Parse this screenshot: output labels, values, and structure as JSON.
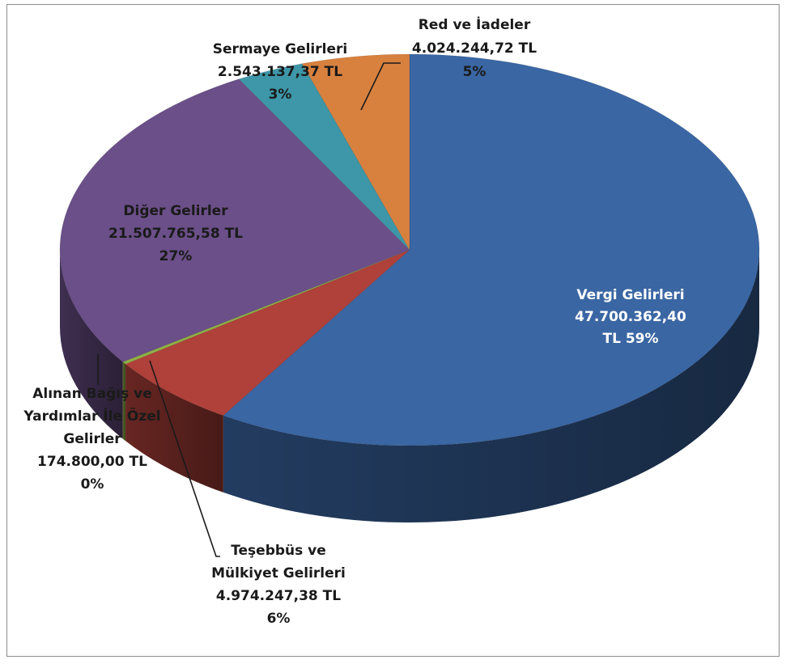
{
  "chart_data": {
    "type": "pie",
    "title": "",
    "style": "3d",
    "currency": "TL",
    "slices": [
      {
        "name": "Vergi Gelirleri",
        "value": 47700362.4,
        "value_label": "47.700.362,40",
        "pct_label": "TL 59%",
        "color": "#3a66a3"
      },
      {
        "name": "Teşebbüs ve Mülkiyet Gelirleri",
        "name_lines": [
          "Teşebbüs ve",
          "Mülkiyet Gelirleri"
        ],
        "value": 4974247.38,
        "value_label": "4.974.247,38 TL",
        "pct_label": "6%",
        "color": "#b0403a"
      },
      {
        "name": "Alınan Bağış ve Yardımlar İle Özel Gelirler",
        "name_lines": [
          "Alınan Bağış ve",
          "Yardımlar İle Özel",
          "Gelirler"
        ],
        "value": 174800.0,
        "value_label": "174.800,00 TL",
        "pct_label": "0%",
        "color": "#8fb043"
      },
      {
        "name": "Diğer Gelirler",
        "value": 21507765.58,
        "value_label": "21.507.765,58 TL",
        "pct_label": "27%",
        "color": "#6b4f88"
      },
      {
        "name": "Sermaye Gelirleri",
        "value": 2543137.37,
        "value_label": "2.543.137,37 TL",
        "pct_label": "3%",
        "color": "#3e97a8"
      },
      {
        "name": "Red ve İadeler",
        "value": 4024244.72,
        "value_label": "4.024.244,72 TL",
        "pct_label": "5%",
        "color": "#d8813f"
      }
    ]
  }
}
